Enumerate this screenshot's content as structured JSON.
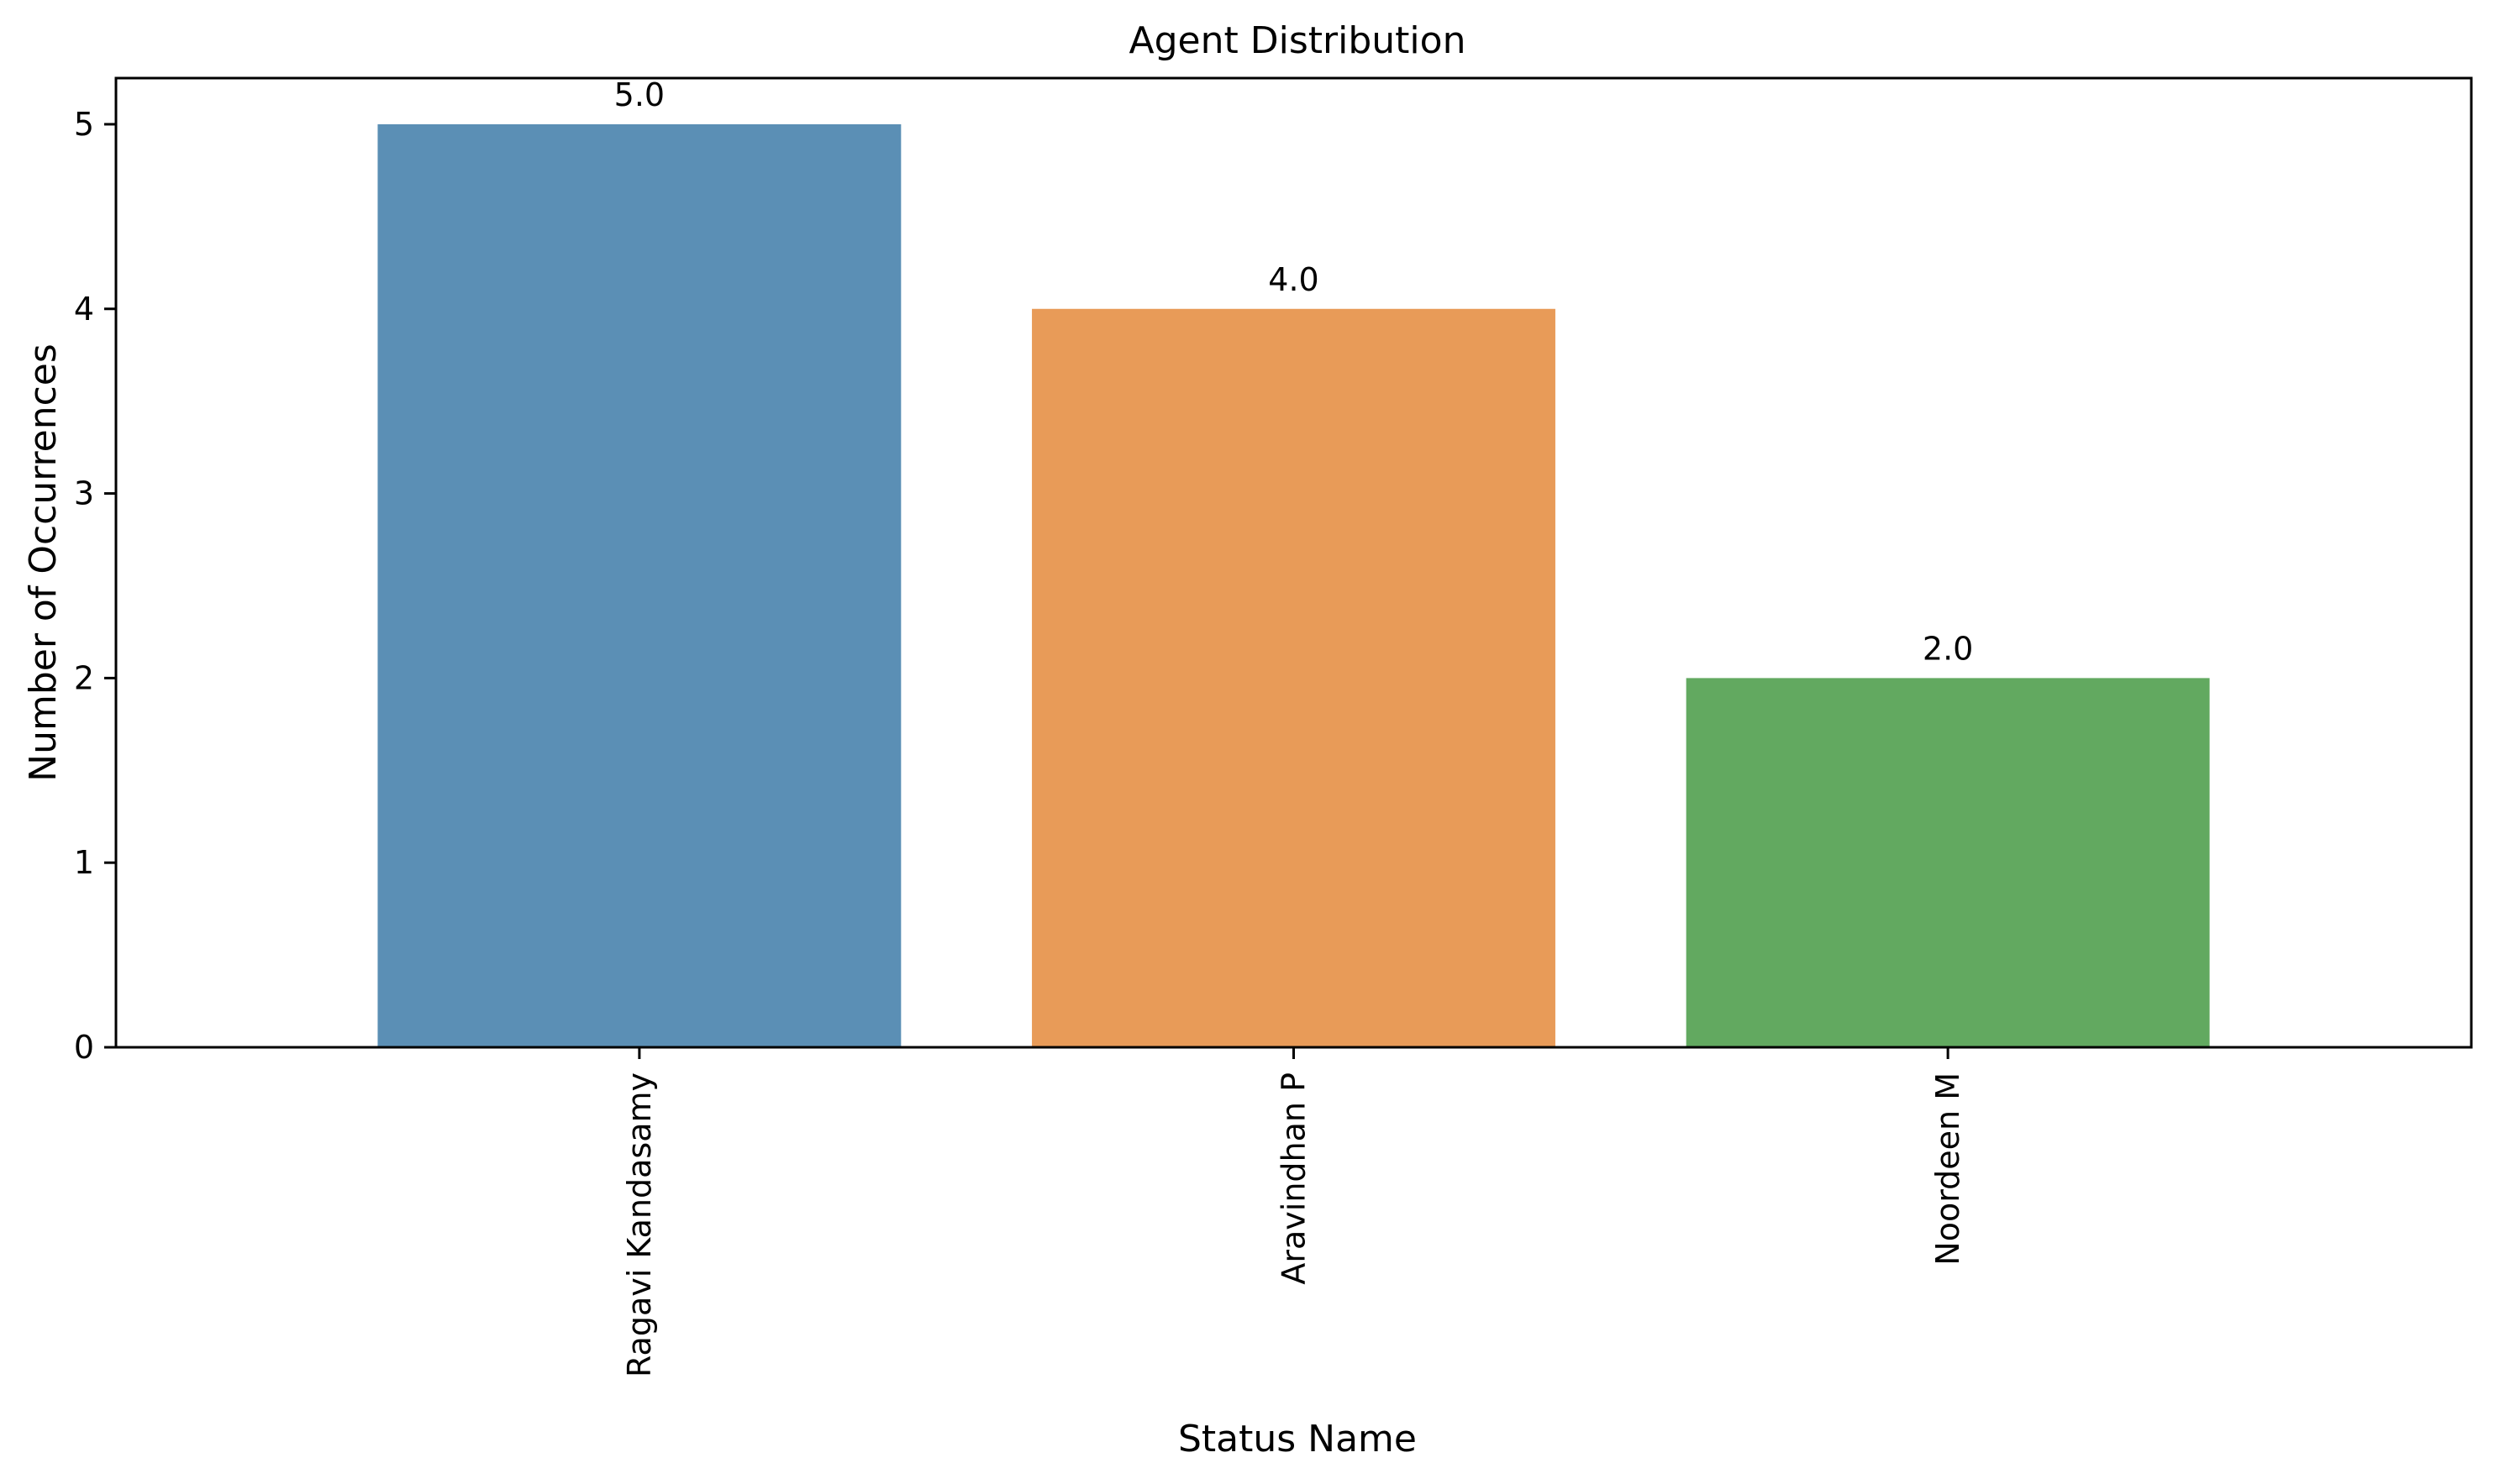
{
  "chart_data": {
    "type": "bar",
    "title": "Agent Distribution",
    "xlabel": "Status Name",
    "ylabel": "Number of Occurrences",
    "categories": [
      "Ragavi Kandasamy",
      "Aravindhan P",
      "Noordeen M"
    ],
    "values": [
      5.0,
      4.0,
      2.0
    ],
    "data_labels": [
      "5.0",
      "4.0",
      "2.0"
    ],
    "colors": [
      "#5b8fb5",
      "#e89b58",
      "#62a960"
    ],
    "ylim": [
      0,
      5.25
    ],
    "yticks": [
      0,
      1,
      2,
      3,
      4,
      5
    ],
    "x_tick_rotation": "vertical",
    "grid": false,
    "legend": "none"
  }
}
